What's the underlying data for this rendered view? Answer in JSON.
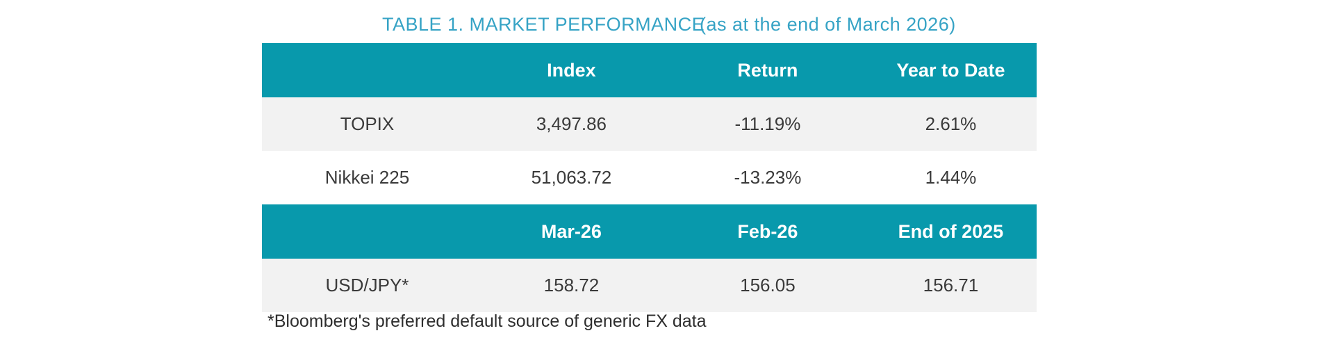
{
  "title": {
    "text": "TABLE 1. MARKET PERFORMANCE",
    "subtitle": "(as at the end of March 2026)",
    "color": "#36a3c5"
  },
  "colors": {
    "header_bg": "#0899ac",
    "header_text": "#ffffff",
    "shaded_row_bg": "#f2f2f2",
    "body_text": "#3a3a3a"
  },
  "table": {
    "sections": [
      {
        "headers": {
          "col1": "Index",
          "col2": "Return",
          "col3": "Year to Date"
        },
        "rows": [
          {
            "label": "TOPIX",
            "col1": "3,497.86",
            "col2": "-11.19%",
            "col3": "2.61%"
          },
          {
            "label": "Nikkei 225",
            "col1": "51,063.72",
            "col2": "-13.23%",
            "col3": "1.44%"
          }
        ]
      },
      {
        "headers": {
          "col1": "Mar-26",
          "col2": "Feb-26",
          "col3": "End of 2025"
        },
        "rows": [
          {
            "label": "USD/JPY*",
            "col1": "158.72",
            "col2": "156.05",
            "col3": "156.71"
          }
        ]
      }
    ]
  },
  "footnote": "*Bloomberg's preferred default source of generic FX data",
  "chart_data": {
    "type": "table",
    "title": "TABLE 1. MARKET PERFORMANCE (as at the end of March 2026)",
    "sections": [
      {
        "columns": [
          "",
          "Index",
          "Return",
          "Year to Date"
        ],
        "rows": [
          [
            "TOPIX",
            "3,497.86",
            "-11.19%",
            "2.61%"
          ],
          [
            "Nikkei 225",
            "51,063.72",
            "-13.23%",
            "1.44%"
          ]
        ]
      },
      {
        "columns": [
          "",
          "Mar-26",
          "Feb-26",
          "End of 2025"
        ],
        "rows": [
          [
            "USD/JPY*",
            "158.72",
            "156.05",
            "156.71"
          ]
        ]
      }
    ]
  }
}
